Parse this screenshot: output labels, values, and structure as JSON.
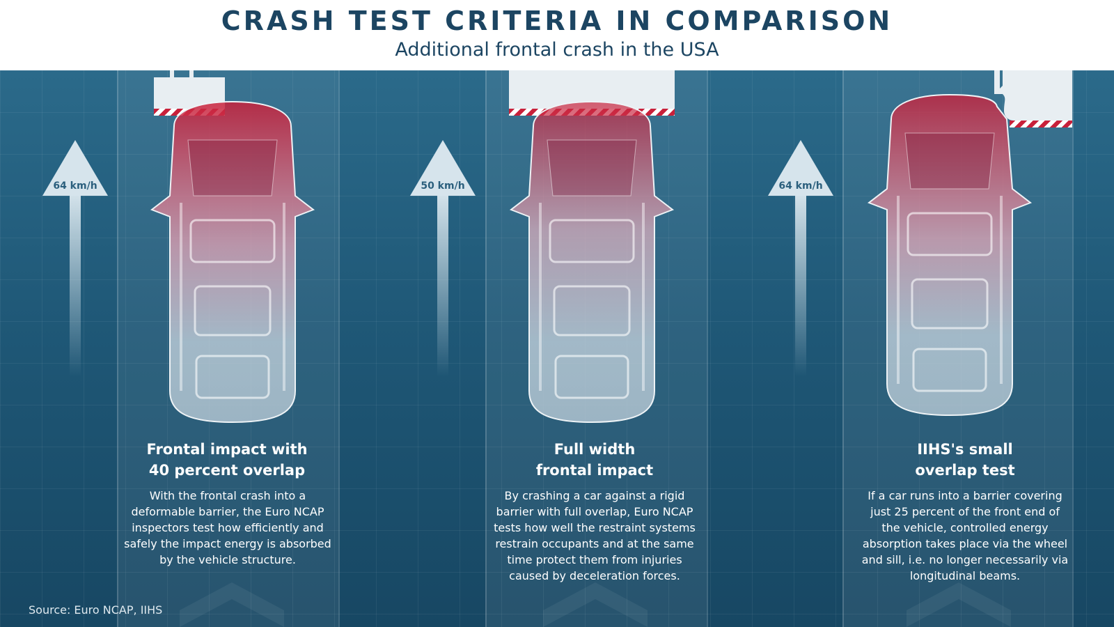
{
  "header": {
    "title": "CRASH TEST CRITERIA IN COMPARISON",
    "subtitle": "Additional frontal crash in the USA"
  },
  "tests": [
    {
      "speed": "64 km/h",
      "heading_line1": "Frontal impact with",
      "heading_line2": "40 percent overlap",
      "description": "With the frontal crash into a deformable barrier, the Euro NCAP inspectors test how efficiently and safely the impact energy is absorbed by the vehicle structure."
    },
    {
      "speed": "50 km/h",
      "heading_line1": "Full width",
      "heading_line2": "frontal impact",
      "description": "By crashing a car against a rigid barrier with full overlap, Euro NCAP tests how well the restraint systems restrain occupants and at the same time protect them from injuries caused by deceleration forces."
    },
    {
      "speed": "64 km/h",
      "heading_line1": "IIHS's small",
      "heading_line2": "overlap test",
      "description": "If a car runs into a barrier covering just 25 percent of the front end of the vehicle, controlled energy absorption takes place via the wheel and sill, i.e. no longer necessarily via longitudinal beams."
    }
  ],
  "source": "Source: Euro NCAP, IIHS",
  "colors": {
    "title": "#1c4562",
    "background": "#1f5877",
    "impact_red": "#c8203a",
    "barrier": "#e8eef2"
  },
  "icons": [
    "up-arrow-icon",
    "car-icon",
    "chevron-up-icon"
  ]
}
